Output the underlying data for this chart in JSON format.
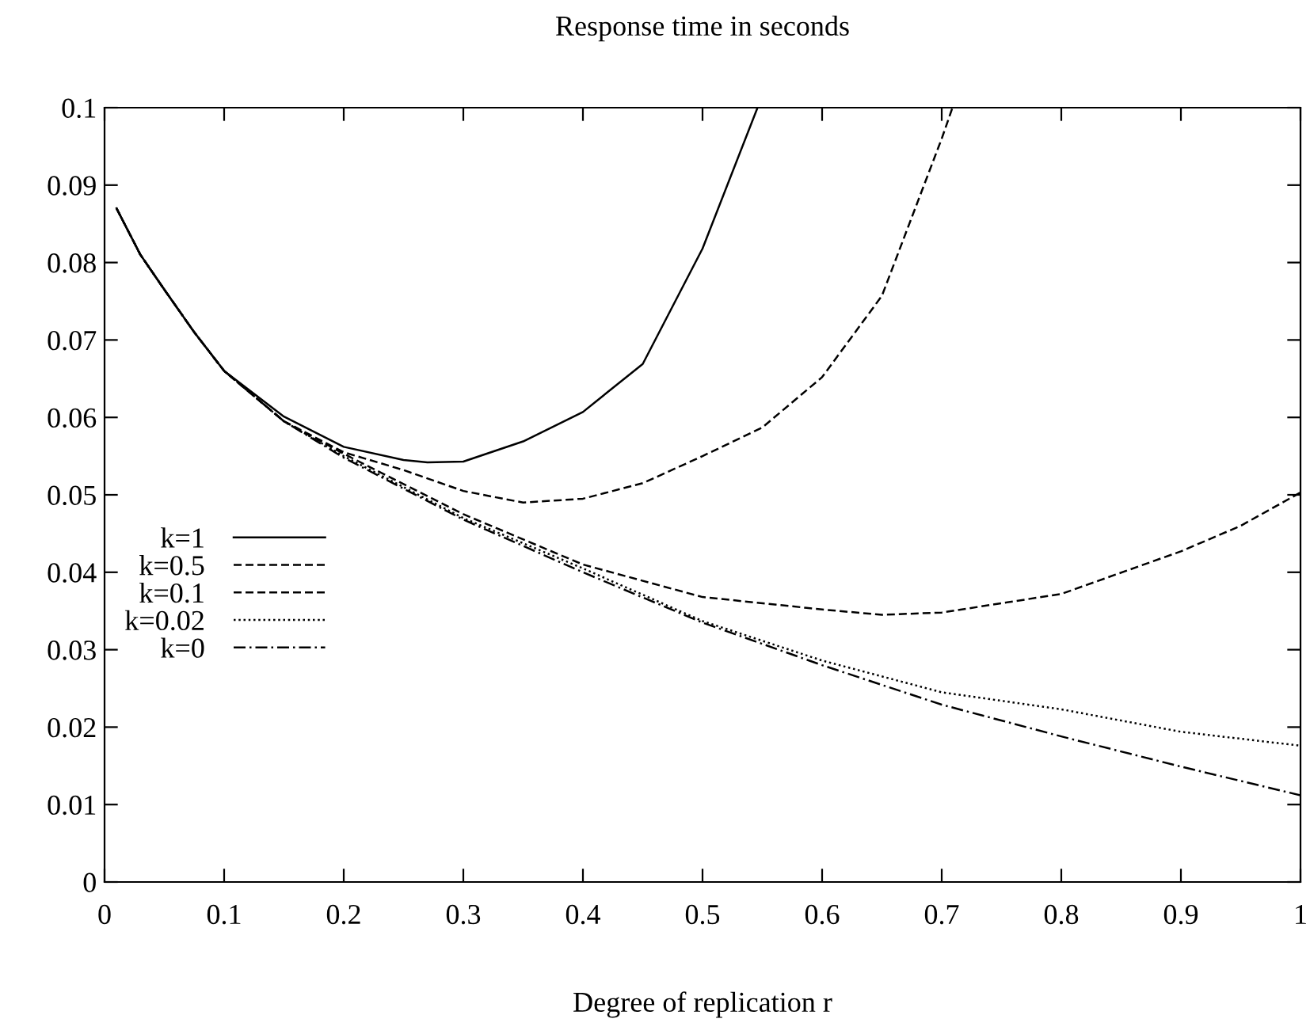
{
  "chart_data": {
    "type": "line",
    "title": "Response time in seconds",
    "xlabel": "Degree of replication r",
    "xlim": [
      0,
      1
    ],
    "ylim": [
      0,
      0.1
    ],
    "xticks": [
      0,
      0.1,
      0.2,
      0.3,
      0.4,
      0.5,
      0.6,
      0.7,
      0.8,
      0.9,
      1
    ],
    "yticks": [
      0,
      0.01,
      0.02,
      0.03,
      0.04,
      0.05,
      0.06,
      0.07,
      0.08,
      0.09,
      0.1
    ],
    "grid": false,
    "legend": "left",
    "marker": "none",
    "series": [
      {
        "name": "k=1",
        "color": "#000000",
        "line_style": "solid",
        "x": [
          0.01,
          0.02,
          0.03,
          0.05,
          0.075,
          0.1,
          0.15,
          0.2,
          0.25,
          0.27,
          0.3,
          0.35,
          0.4,
          0.45,
          0.5,
          0.546
        ],
        "values": [
          0.087,
          0.084,
          0.081,
          0.0765,
          0.071,
          0.066,
          0.0601,
          0.0562,
          0.0545,
          0.0542,
          0.0543,
          0.0569,
          0.0607,
          0.0669,
          0.0818,
          0.1
        ]
      },
      {
        "name": "k=0.5",
        "color": "#000000",
        "line_style": "dashed",
        "x": [
          0.01,
          0.02,
          0.03,
          0.05,
          0.075,
          0.1,
          0.15,
          0.2,
          0.25,
          0.3,
          0.35,
          0.4,
          0.45,
          0.5,
          0.55,
          0.6,
          0.65,
          0.7,
          0.709
        ],
        "values": [
          0.087,
          0.084,
          0.081,
          0.0765,
          0.071,
          0.066,
          0.0595,
          0.0555,
          0.0532,
          0.0505,
          0.049,
          0.0495,
          0.0515,
          0.055,
          0.0587,
          0.0652,
          0.0757,
          0.096,
          0.1
        ]
      },
      {
        "name": "k=0.1",
        "color": "#000000",
        "line_style": "dashed",
        "x": [
          0.01,
          0.02,
          0.03,
          0.05,
          0.075,
          0.1,
          0.15,
          0.2,
          0.3,
          0.4,
          0.5,
          0.6,
          0.65,
          0.7,
          0.8,
          0.9,
          0.95,
          1
        ],
        "values": [
          0.087,
          0.084,
          0.081,
          0.0765,
          0.071,
          0.066,
          0.0595,
          0.0553,
          0.0475,
          0.041,
          0.0368,
          0.0352,
          0.0345,
          0.0348,
          0.0372,
          0.0427,
          0.046,
          0.0503
        ]
      },
      {
        "name": "k=0.02",
        "color": "#000000",
        "line_style": "dotted",
        "x": [
          0.01,
          0.02,
          0.03,
          0.05,
          0.075,
          0.1,
          0.15,
          0.2,
          0.3,
          0.4,
          0.5,
          0.6,
          0.7,
          0.8,
          0.9,
          1
        ],
        "values": [
          0.087,
          0.084,
          0.081,
          0.0765,
          0.071,
          0.066,
          0.0595,
          0.055,
          0.047,
          0.0405,
          0.0337,
          0.0286,
          0.0245,
          0.0223,
          0.0194,
          0.0176
        ]
      },
      {
        "name": "k=0",
        "color": "#000000",
        "line_style": "dashdot",
        "x": [
          0.01,
          0.02,
          0.03,
          0.05,
          0.075,
          0.1,
          0.15,
          0.2,
          0.3,
          0.4,
          0.5,
          0.6,
          0.7,
          0.8,
          0.9,
          1
        ],
        "values": [
          0.087,
          0.084,
          0.081,
          0.0765,
          0.071,
          0.066,
          0.0595,
          0.0548,
          0.0468,
          0.04,
          0.0335,
          0.028,
          0.0229,
          0.0188,
          0.0149,
          0.0112
        ]
      }
    ]
  }
}
